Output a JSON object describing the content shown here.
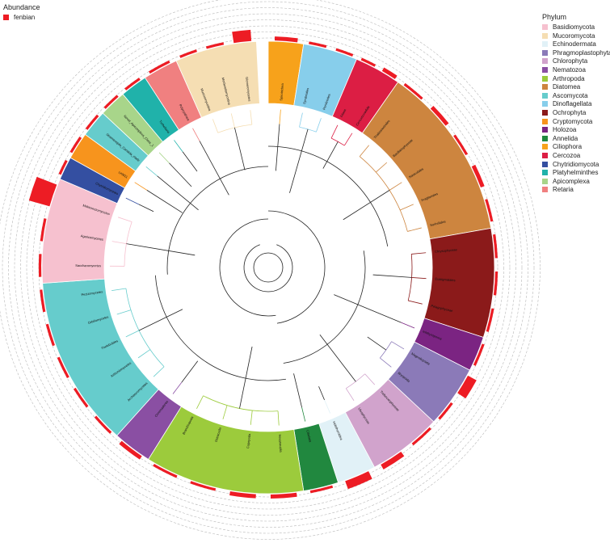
{
  "chart_data": {
    "type": "circular-tree",
    "title": "",
    "abundance_legend": {
      "title": "Abundance",
      "entries": [
        {
          "name": "fenbian",
          "color": "#ed1c24"
        }
      ]
    },
    "phylum_legend": {
      "title": "Phylum",
      "entries": [
        {
          "name": "Basidiomycota",
          "color": "#f6c1cf"
        },
        {
          "name": "Mucoromycota",
          "color": "#f5deb3"
        },
        {
          "name": "Echinodermata",
          "color": "#e1f1f7"
        },
        {
          "name": "Phragmoplastophyta",
          "color": "#8b7ab8"
        },
        {
          "name": "Chlorophyta",
          "color": "#d1a3cc"
        },
        {
          "name": "Nematozoa",
          "color": "#8a4fa3"
        },
        {
          "name": "Arthropoda",
          "color": "#9ccb3c"
        },
        {
          "name": "Diatomea",
          "color": "#cd853f"
        },
        {
          "name": "Ascomycota",
          "color": "#66cccc"
        },
        {
          "name": "Dinoflagellata",
          "color": "#87ceeb"
        },
        {
          "name": "Ochrophyta",
          "color": "#8b1a1a"
        },
        {
          "name": "Cryptomycota",
          "color": "#f7941d"
        },
        {
          "name": "Holozoa",
          "color": "#7b2482"
        },
        {
          "name": "Annelida",
          "color": "#21883f"
        },
        {
          "name": "Ciliophora",
          "color": "#f7a21b"
        },
        {
          "name": "Cercozoa",
          "color": "#dc1e44"
        },
        {
          "name": "Chytridiomycota",
          "color": "#344fa1"
        },
        {
          "name": "Platyhelminthes",
          "color": "#20b2aa"
        },
        {
          "name": "Apicomplexa",
          "color": "#a8d58a"
        },
        {
          "name": "Retaria",
          "color": "#f08080"
        }
      ]
    },
    "sectors": [
      {
        "phylum": "Ciliophora",
        "start": 0,
        "end": 9,
        "labels": [
          "Spirotrichea"
        ],
        "abundance": [
          2
        ]
      },
      {
        "phylum": "Dinoflagellata",
        "start": 9,
        "end": 23,
        "labels": [
          "Syndiniales",
          "Peridiniales"
        ],
        "abundance": [
          1,
          1
        ]
      },
      {
        "phylum": "Cercozoa",
        "start": 23,
        "end": 35,
        "labels": [
          "Filosa",
          "Cercomonadida"
        ],
        "abundance": [
          1,
          2
        ]
      },
      {
        "phylum": "Diatomea",
        "start": 35,
        "end": 80,
        "labels": [
          "Thalassiosirales",
          "Bacillariophyceae",
          "Naviculales",
          "Fragilariales",
          "Surirellales"
        ],
        "abundance": [
          1,
          2,
          1,
          2,
          1
        ]
      },
      {
        "phylum": "Ochrophyta",
        "start": 80,
        "end": 108,
        "labels": [
          "Chrysophyceae",
          "Eustigmatales",
          "Pelagophyceae"
        ],
        "abundance": [
          1,
          1,
          1
        ]
      },
      {
        "phylum": "Holozoa",
        "start": 108,
        "end": 117,
        "labels": [
          "Ichthyosporea"
        ],
        "abundance": [
          1
        ]
      },
      {
        "phylum": "Phragmoplastophyta",
        "start": 117,
        "end": 133,
        "labels": [
          "Magnoliopsida",
          "Bryopsida"
        ],
        "abundance": [
          6,
          1
        ]
      },
      {
        "phylum": "Chlorophyta",
        "start": 133,
        "end": 152,
        "labels": [
          "Trebouxiophyceae",
          "Ulvophyceae"
        ],
        "abundance": [
          1,
          3
        ]
      },
      {
        "phylum": "Echinodermata",
        "start": 152,
        "end": 162,
        "labels": [
          "Holothuroidea"
        ],
        "abundance": [
          5
        ]
      },
      {
        "phylum": "Annelida",
        "start": 162,
        "end": 171,
        "labels": [
          "Clitellata"
        ],
        "abundance": [
          1
        ]
      },
      {
        "phylum": "Arthropoda",
        "start": 171,
        "end": 212,
        "labels": [
          "Hexanauplia",
          "Copepoda",
          "Ostracoda",
          "Branchiopoda"
        ],
        "abundance": [
          2,
          2,
          1,
          1
        ]
      },
      {
        "phylum": "Nematozoa",
        "start": 212,
        "end": 222,
        "labels": [
          "Chromadorea"
        ],
        "abundance": [
          2
        ]
      },
      {
        "phylum": "Ascomycota",
        "start": 222,
        "end": 266,
        "labels": [
          "Archiascomycetes",
          "Arthoniomycetes",
          "Thelebolales",
          "Orbiliomycetes",
          "Pezizomycetes"
        ],
        "abundance": [
          1,
          1,
          1,
          1,
          1
        ]
      },
      {
        "phylum": "Basidiomycota",
        "start": 266,
        "end": 293,
        "labels": [
          "Saccharomycetes",
          "Agaricomycetes",
          "Malasseziomycetes"
        ],
        "abundance": [
          1,
          1,
          14
        ]
      },
      {
        "phylum": "Chytridiomycota",
        "start": 293,
        "end": 299,
        "labels": [
          "Chytridiomycetes"
        ],
        "abundance": [
          1
        ]
      },
      {
        "phylum": "Cryptomycota",
        "start": 299,
        "end": 306,
        "labels": [
          "LKM11"
        ],
        "abundance": [
          1
        ]
      },
      {
        "phylum": "Ascomycota",
        "start": 306,
        "end": 313,
        "labels": [
          "Stramenopile_Candida_clade"
        ],
        "abundance": [
          1
        ]
      },
      {
        "phylum": "Apicomplexa",
        "start": 313,
        "end": 320,
        "labels": [
          "Novel_Apicomplexa_Class_1"
        ],
        "abundance": [
          1
        ]
      },
      {
        "phylum": "Platyhelminthes",
        "start": 320,
        "end": 327,
        "labels": [
          "Turbellaria"
        ],
        "abundance": [
          1
        ]
      },
      {
        "phylum": "Retaria",
        "start": 327,
        "end": 336,
        "labels": [
          "Polycystinea"
        ],
        "abundance": [
          1
        ]
      },
      {
        "phylum": "Mucoromycota",
        "start": 336,
        "end": 357,
        "labels": [
          "Mucoromycotina",
          "Mortierellomycotina",
          "Glomeromycetes"
        ],
        "abundance": [
          1,
          1,
          7
        ]
      }
    ]
  }
}
